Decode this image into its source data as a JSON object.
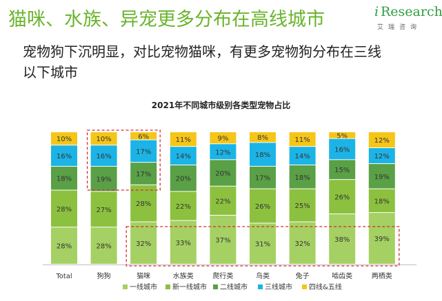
{
  "header": {
    "title": "猫咪、水族、异宠更多分布在高线城市",
    "subtitle": "宠物狗下沉明显，对比宠物猫咪，有更多宠物狗分布在三线以下城市",
    "logo_mark": "i",
    "logo_name": "Research",
    "logo_sub": "艾瑞咨询"
  },
  "chart_data": {
    "type": "bar",
    "stacked": true,
    "title": "2021年不同城市级别各类型宠物占比",
    "categories": [
      "Total",
      "狗狗",
      "猫咪",
      "水族类",
      "爬行类",
      "鸟类",
      "兔子",
      "啮齿类",
      "两栖类"
    ],
    "series": [
      {
        "name": "一线城市",
        "color": "#a5d063",
        "values": [
          28,
          28,
          32,
          33,
          37,
          31,
          32,
          38,
          39
        ]
      },
      {
        "name": "新一线城市",
        "color": "#8cc13f",
        "values": [
          28,
          27,
          28,
          22,
          22,
          26,
          25,
          26,
          18
        ]
      },
      {
        "name": "二线城市",
        "color": "#5aa046",
        "values": [
          18,
          19,
          17,
          20,
          20,
          17,
          18,
          15,
          19
        ]
      },
      {
        "name": "三线城市",
        "color": "#1cb4e6",
        "values": [
          16,
          16,
          17,
          14,
          12,
          18,
          14,
          16,
          12
        ]
      },
      {
        "name": "四线&五线",
        "color": "#f5c518",
        "values": [
          10,
          10,
          6,
          11,
          9,
          8,
          11,
          5,
          12
        ]
      }
    ],
    "ylim": [
      0,
      100
    ],
    "label_suffix": "%",
    "legend_position": "bottom",
    "highlight_boxes_color": "#d62a2a"
  }
}
